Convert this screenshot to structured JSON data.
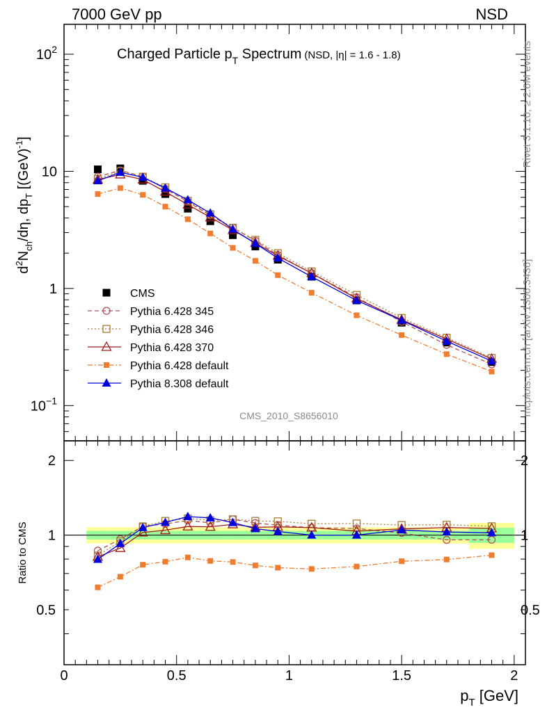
{
  "header": {
    "left": "7000 GeV pp",
    "right": "NSD"
  },
  "side_labels": {
    "rivet": "Rivet 3.1.10, ≥ 2.6M events",
    "mcplots": "mcplots.cern.ch [arXiv:1306.3436]"
  },
  "watermark": "CMS_2010_S8656010",
  "chart_data": {
    "type": "scatter",
    "title": "Charged Particle p",
    "title_sub": "T",
    "title_tail": " Spectrum",
    "title_note": "(NSD, |η| = 1.6 - 1.8)",
    "ylabel": "d²Nₕₕ/dη, dpₜ [(GeV)⁻¹]",
    "ylabel_parts": {
      "a": "d",
      "sup1": "2",
      "b": "N",
      "sub1": "ch",
      "c": "/dη, dp",
      "sub2": "T",
      "d": " [(GeV)",
      "sup2": "-1",
      "e": "]"
    },
    "xlabel": "p",
    "xlabel_sub": "T",
    "xlabel_tail": " [GeV]",
    "ratio_ylabel": "Ratio to CMS",
    "xlim": [
      0,
      2.05
    ],
    "ylim": [
      0.05,
      180
    ],
    "yscale": "log",
    "ratio_ylim": [
      0.3,
      2.4
    ],
    "ratio_yscale": "log",
    "x_ticks": [
      "0",
      "0.5",
      "1",
      "1.5",
      "2"
    ],
    "y_ticks": [
      {
        "value": 100,
        "base": "10",
        "exp": "2"
      },
      {
        "value": 10,
        "base": "10",
        "exp": ""
      },
      {
        "value": 1,
        "base": "1",
        "exp": ""
      },
      {
        "value": 0.1,
        "base": "10",
        "exp": "−1"
      }
    ],
    "ratio_ticks": [
      "0.5",
      "1",
      "2"
    ],
    "legend_position": "lower-left",
    "x": [
      0.15,
      0.25,
      0.35,
      0.45,
      0.55,
      0.65,
      0.75,
      0.85,
      0.95,
      1.1,
      1.3,
      1.5,
      1.7,
      1.9
    ],
    "band_edges": [
      0.1,
      0.2,
      0.3,
      0.4,
      0.5,
      0.6,
      0.7,
      0.8,
      0.9,
      1.0,
      1.2,
      1.4,
      1.6,
      1.8,
      2.0
    ],
    "band_stat": [
      0.04,
      0.04,
      0.04,
      0.04,
      0.04,
      0.04,
      0.04,
      0.04,
      0.04,
      0.04,
      0.04,
      0.04,
      0.04,
      0.07
    ],
    "band_total": [
      0.075,
      0.075,
      0.075,
      0.075,
      0.075,
      0.075,
      0.075,
      0.075,
      0.075,
      0.075,
      0.075,
      0.075,
      0.075,
      0.12
    ],
    "series": [
      {
        "name": "CMS",
        "marker": "square-filled",
        "color": "#000000",
        "line": "none",
        "values": [
          10.4,
          10.6,
          8.3,
          6.4,
          4.8,
          3.75,
          2.85,
          2.28,
          1.76,
          1.26,
          0.79,
          0.51,
          0.345,
          0.235
        ]
      },
      {
        "name": "Pythia 6.428 345",
        "marker": "circle-open",
        "color": "#b0505a",
        "line": "dashed",
        "values": [
          9.0,
          10.2,
          9.0,
          7.1,
          5.5,
          4.2,
          3.3,
          2.55,
          1.93,
          1.35,
          0.84,
          0.52,
          0.33,
          0.225
        ]
      },
      {
        "name": "Pythia 6.428 346",
        "marker": "square-open",
        "color": "#a87a30",
        "line": "dotted",
        "values": [
          8.6,
          10.0,
          9.0,
          7.3,
          5.6,
          4.3,
          3.3,
          2.6,
          2.0,
          1.4,
          0.88,
          0.56,
          0.38,
          0.255
        ]
      },
      {
        "name": "Pythia 6.428 370",
        "marker": "triangle-open",
        "color": "#a01c1c",
        "line": "solid",
        "values": [
          8.5,
          9.4,
          8.5,
          6.7,
          5.2,
          4.05,
          3.15,
          2.45,
          1.9,
          1.35,
          0.82,
          0.54,
          0.37,
          0.25
        ]
      },
      {
        "name": "Pythia 6.428 default",
        "marker": "square-filled-small",
        "color": "#f07c30",
        "line": "dashdot",
        "values": [
          6.4,
          7.2,
          6.3,
          5.0,
          3.9,
          2.95,
          2.22,
          1.72,
          1.3,
          0.92,
          0.59,
          0.4,
          0.275,
          0.195
        ]
      },
      {
        "name": "Pythia 8.308 default",
        "marker": "triangle-filled",
        "color": "#0000dd",
        "line": "solid",
        "values": [
          8.3,
          9.8,
          8.9,
          7.2,
          5.7,
          4.4,
          3.2,
          2.42,
          1.82,
          1.26,
          0.79,
          0.535,
          0.355,
          0.24
        ]
      }
    ]
  }
}
